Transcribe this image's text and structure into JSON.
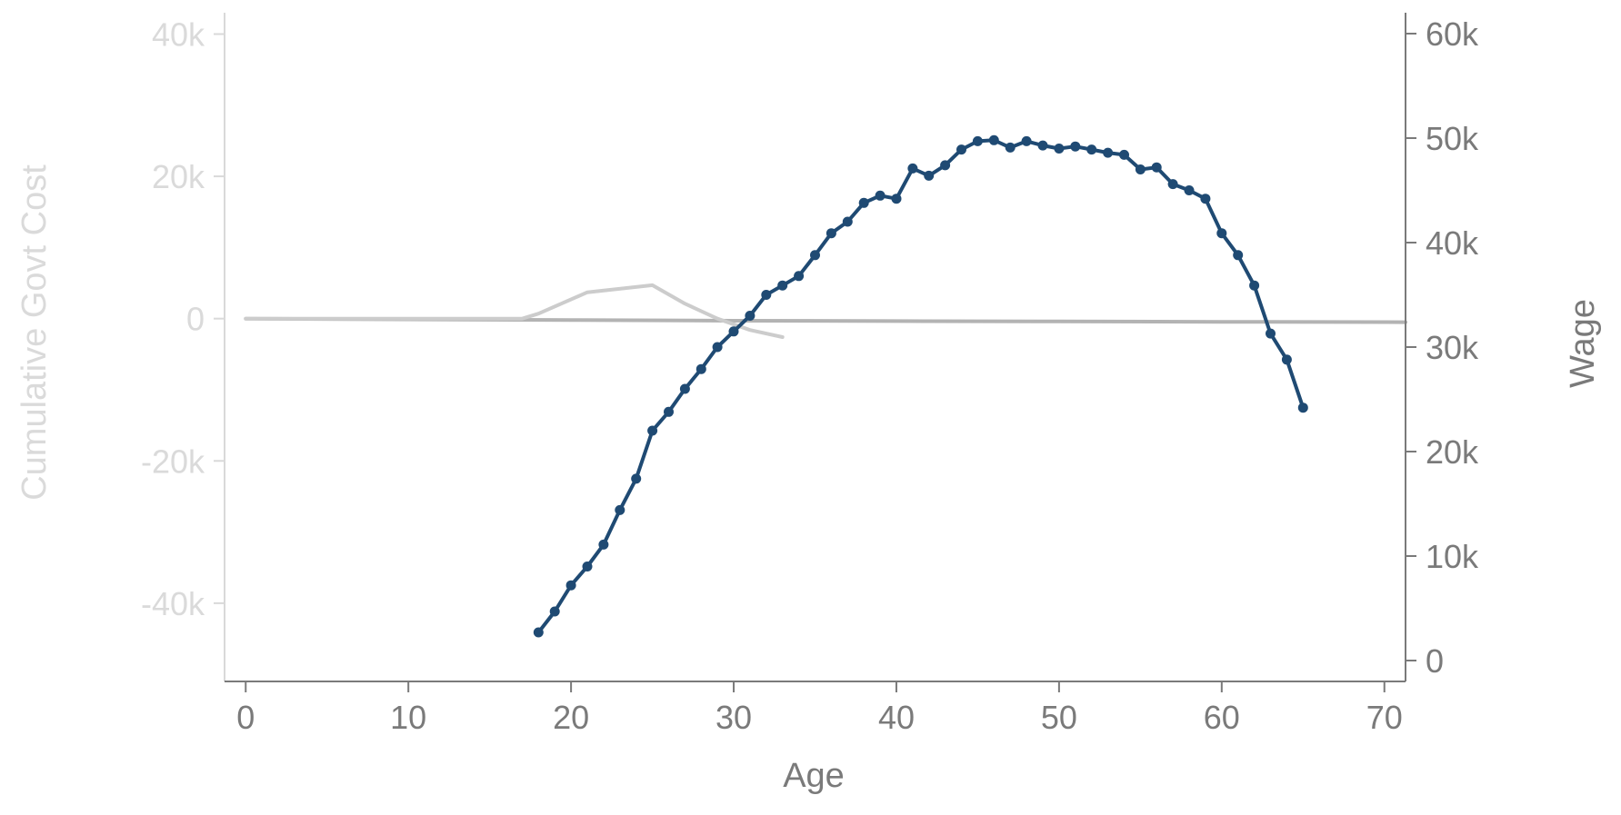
{
  "chart_data": {
    "type": "line",
    "title": "",
    "xlabel": "Age",
    "ylabel_left": "Cumulative Govt Cost",
    "ylabel_right": "Wage",
    "xlim": [
      -1.3,
      71.3
    ],
    "ylim_left": [
      -51000,
      43000
    ],
    "ylim_right": [
      -2000,
      62000
    ],
    "x_ticks": [
      0,
      10,
      20,
      30,
      40,
      50,
      60,
      70
    ],
    "x_tick_labels": [
      "0",
      "10",
      "20",
      "30",
      "40",
      "50",
      "60",
      "70"
    ],
    "y_left_ticks": [
      -40000,
      -20000,
      0,
      20000,
      40000
    ],
    "y_left_tick_labels": [
      "-40k",
      "-20k",
      "0",
      "20k",
      "40k"
    ],
    "y_right_ticks": [
      0,
      10000,
      20000,
      30000,
      40000,
      50000,
      60000
    ],
    "y_right_tick_labels": [
      "0",
      "10k",
      "20k",
      "30k",
      "40k",
      "50k",
      "60k"
    ],
    "grid": false,
    "colors": {
      "wage_line": "#1f4a73",
      "cost_line": "#cccccc",
      "cost_line_dark": "#b3b3b3",
      "left_axis": "#d9d9d9",
      "left_text": "#dadada",
      "right_axis": "#7a7a7a",
      "right_text": "#7a7a7a",
      "bottom_axis": "#7a7a7a",
      "bottom_text": "#7a7a7a"
    },
    "series": [
      {
        "axis": "right",
        "markers": true,
        "x": [
          18,
          19,
          20,
          21,
          22,
          23,
          24,
          25,
          26,
          27,
          28,
          29,
          30,
          31,
          32,
          33,
          34,
          35,
          36,
          37,
          38,
          39,
          40,
          41,
          42,
          43,
          44,
          45,
          46,
          47,
          48,
          49,
          50,
          51,
          52,
          53,
          54,
          55,
          56,
          57,
          58,
          59,
          60,
          61,
          62,
          63,
          64,
          65
        ],
        "y": [
          2700,
          4700,
          7200,
          9000,
          11100,
          14400,
          17400,
          22000,
          23800,
          26000,
          27900,
          30000,
          31500,
          33000,
          35000,
          35900,
          36800,
          38800,
          40900,
          42000,
          43800,
          44500,
          44200,
          47100,
          46400,
          47400,
          48900,
          49700,
          49800,
          49100,
          49700,
          49300,
          49000,
          49200,
          48900,
          48600,
          48400,
          47000,
          47200,
          45600,
          45000,
          44200,
          40900,
          38800,
          35900,
          31300,
          28800,
          24200
        ]
      },
      {
        "axis": "left",
        "markers": false,
        "x": [
          0,
          17,
          18,
          21,
          25,
          27,
          29,
          31,
          33
        ],
        "y": [
          0,
          0,
          700,
          3700,
          4700,
          2100,
          0,
          -1600,
          -2600
        ]
      },
      {
        "axis": "left",
        "markers": false,
        "x": [
          0,
          10,
          20,
          30,
          40,
          50,
          60,
          71.3
        ],
        "y": [
          0,
          -100,
          -200,
          -300,
          -350,
          -400,
          -450,
          -500
        ]
      }
    ]
  }
}
